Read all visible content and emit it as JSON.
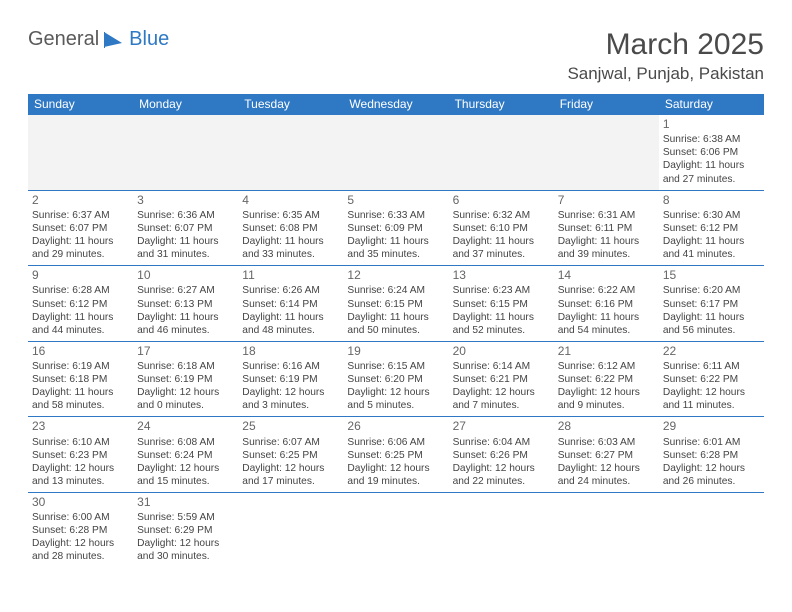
{
  "brand": {
    "word1": "General",
    "word2": "Blue",
    "icon_color": "#2f78c4",
    "text_color": "#5a5a5a"
  },
  "title": "March 2025",
  "location": "Sanjwal, Punjab, Pakistan",
  "header_bg": "#2f78c4",
  "header_fg": "#ffffff",
  "border_color": "#2f78c4",
  "blank_bg": "#f3f3f3",
  "weekdays": [
    "Sunday",
    "Monday",
    "Tuesday",
    "Wednesday",
    "Thursday",
    "Friday",
    "Saturday"
  ],
  "weeks": [
    [
      null,
      null,
      null,
      null,
      null,
      null,
      {
        "n": "1",
        "sunrise": "Sunrise: 6:38 AM",
        "sunset": "Sunset: 6:06 PM",
        "daylight": "Daylight: 11 hours and 27 minutes."
      }
    ],
    [
      {
        "n": "2",
        "sunrise": "Sunrise: 6:37 AM",
        "sunset": "Sunset: 6:07 PM",
        "daylight": "Daylight: 11 hours and 29 minutes."
      },
      {
        "n": "3",
        "sunrise": "Sunrise: 6:36 AM",
        "sunset": "Sunset: 6:07 PM",
        "daylight": "Daylight: 11 hours and 31 minutes."
      },
      {
        "n": "4",
        "sunrise": "Sunrise: 6:35 AM",
        "sunset": "Sunset: 6:08 PM",
        "daylight": "Daylight: 11 hours and 33 minutes."
      },
      {
        "n": "5",
        "sunrise": "Sunrise: 6:33 AM",
        "sunset": "Sunset: 6:09 PM",
        "daylight": "Daylight: 11 hours and 35 minutes."
      },
      {
        "n": "6",
        "sunrise": "Sunrise: 6:32 AM",
        "sunset": "Sunset: 6:10 PM",
        "daylight": "Daylight: 11 hours and 37 minutes."
      },
      {
        "n": "7",
        "sunrise": "Sunrise: 6:31 AM",
        "sunset": "Sunset: 6:11 PM",
        "daylight": "Daylight: 11 hours and 39 minutes."
      },
      {
        "n": "8",
        "sunrise": "Sunrise: 6:30 AM",
        "sunset": "Sunset: 6:12 PM",
        "daylight": "Daylight: 11 hours and 41 minutes."
      }
    ],
    [
      {
        "n": "9",
        "sunrise": "Sunrise: 6:28 AM",
        "sunset": "Sunset: 6:12 PM",
        "daylight": "Daylight: 11 hours and 44 minutes."
      },
      {
        "n": "10",
        "sunrise": "Sunrise: 6:27 AM",
        "sunset": "Sunset: 6:13 PM",
        "daylight": "Daylight: 11 hours and 46 minutes."
      },
      {
        "n": "11",
        "sunrise": "Sunrise: 6:26 AM",
        "sunset": "Sunset: 6:14 PM",
        "daylight": "Daylight: 11 hours and 48 minutes."
      },
      {
        "n": "12",
        "sunrise": "Sunrise: 6:24 AM",
        "sunset": "Sunset: 6:15 PM",
        "daylight": "Daylight: 11 hours and 50 minutes."
      },
      {
        "n": "13",
        "sunrise": "Sunrise: 6:23 AM",
        "sunset": "Sunset: 6:15 PM",
        "daylight": "Daylight: 11 hours and 52 minutes."
      },
      {
        "n": "14",
        "sunrise": "Sunrise: 6:22 AM",
        "sunset": "Sunset: 6:16 PM",
        "daylight": "Daylight: 11 hours and 54 minutes."
      },
      {
        "n": "15",
        "sunrise": "Sunrise: 6:20 AM",
        "sunset": "Sunset: 6:17 PM",
        "daylight": "Daylight: 11 hours and 56 minutes."
      }
    ],
    [
      {
        "n": "16",
        "sunrise": "Sunrise: 6:19 AM",
        "sunset": "Sunset: 6:18 PM",
        "daylight": "Daylight: 11 hours and 58 minutes."
      },
      {
        "n": "17",
        "sunrise": "Sunrise: 6:18 AM",
        "sunset": "Sunset: 6:19 PM",
        "daylight": "Daylight: 12 hours and 0 minutes."
      },
      {
        "n": "18",
        "sunrise": "Sunrise: 6:16 AM",
        "sunset": "Sunset: 6:19 PM",
        "daylight": "Daylight: 12 hours and 3 minutes."
      },
      {
        "n": "19",
        "sunrise": "Sunrise: 6:15 AM",
        "sunset": "Sunset: 6:20 PM",
        "daylight": "Daylight: 12 hours and 5 minutes."
      },
      {
        "n": "20",
        "sunrise": "Sunrise: 6:14 AM",
        "sunset": "Sunset: 6:21 PM",
        "daylight": "Daylight: 12 hours and 7 minutes."
      },
      {
        "n": "21",
        "sunrise": "Sunrise: 6:12 AM",
        "sunset": "Sunset: 6:22 PM",
        "daylight": "Daylight: 12 hours and 9 minutes."
      },
      {
        "n": "22",
        "sunrise": "Sunrise: 6:11 AM",
        "sunset": "Sunset: 6:22 PM",
        "daylight": "Daylight: 12 hours and 11 minutes."
      }
    ],
    [
      {
        "n": "23",
        "sunrise": "Sunrise: 6:10 AM",
        "sunset": "Sunset: 6:23 PM",
        "daylight": "Daylight: 12 hours and 13 minutes."
      },
      {
        "n": "24",
        "sunrise": "Sunrise: 6:08 AM",
        "sunset": "Sunset: 6:24 PM",
        "daylight": "Daylight: 12 hours and 15 minutes."
      },
      {
        "n": "25",
        "sunrise": "Sunrise: 6:07 AM",
        "sunset": "Sunset: 6:25 PM",
        "daylight": "Daylight: 12 hours and 17 minutes."
      },
      {
        "n": "26",
        "sunrise": "Sunrise: 6:06 AM",
        "sunset": "Sunset: 6:25 PM",
        "daylight": "Daylight: 12 hours and 19 minutes."
      },
      {
        "n": "27",
        "sunrise": "Sunrise: 6:04 AM",
        "sunset": "Sunset: 6:26 PM",
        "daylight": "Daylight: 12 hours and 22 minutes."
      },
      {
        "n": "28",
        "sunrise": "Sunrise: 6:03 AM",
        "sunset": "Sunset: 6:27 PM",
        "daylight": "Daylight: 12 hours and 24 minutes."
      },
      {
        "n": "29",
        "sunrise": "Sunrise: 6:01 AM",
        "sunset": "Sunset: 6:28 PM",
        "daylight": "Daylight: 12 hours and 26 minutes."
      }
    ],
    [
      {
        "n": "30",
        "sunrise": "Sunrise: 6:00 AM",
        "sunset": "Sunset: 6:28 PM",
        "daylight": "Daylight: 12 hours and 28 minutes."
      },
      {
        "n": "31",
        "sunrise": "Sunrise: 5:59 AM",
        "sunset": "Sunset: 6:29 PM",
        "daylight": "Daylight: 12 hours and 30 minutes."
      },
      null,
      null,
      null,
      null,
      null
    ]
  ]
}
